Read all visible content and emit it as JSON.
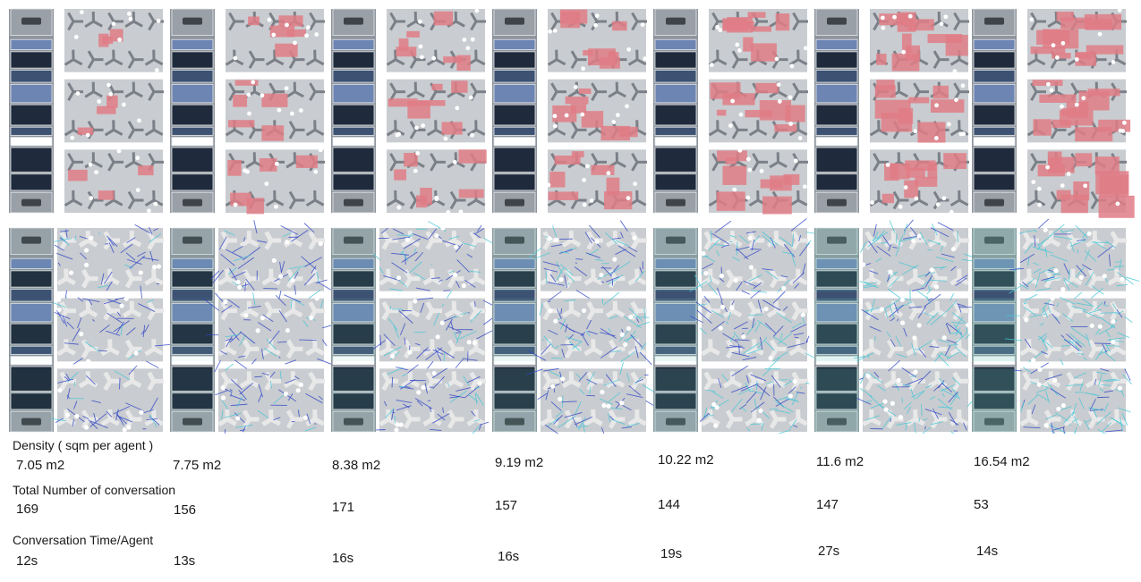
{
  "row_labels": {
    "density": "Density ( sqm per agent )",
    "conversations": "Total Number of conversation",
    "time": "Conversation Time/Agent"
  },
  "columns": [
    {
      "density": "7.05 m2",
      "conversations": "169",
      "time": "12s"
    },
    {
      "density": "7.75 m2",
      "conversations": "156",
      "time": "13s"
    },
    {
      "density": "8.38 m2",
      "conversations": "171",
      "time": "16s"
    },
    {
      "density": "9.19 m2",
      "conversations": "157",
      "time": "16s"
    },
    {
      "density": "10.22 m2",
      "conversations": "144",
      "time": "19s"
    },
    {
      "density": "11.6 m2",
      "conversations": "147",
      "time": "27s"
    },
    {
      "density": "16.54 m2",
      "conversations": "53",
      "time": "14s"
    }
  ],
  "colors": {
    "floor": "#c9ccd0",
    "desk": "#7b8088",
    "dark_block": "#1f2b3c",
    "mid_block": "#3d5273",
    "highlight": "#6d85b3",
    "conversation_zone": "#e07d86",
    "path_blue": "#2f45c8",
    "path_cyan": "#46c8d8",
    "path_teal": "#6fc8b8"
  },
  "panel_intensity": [
    0.15,
    0.3,
    0.45,
    0.55,
    0.65,
    0.8,
    0.95
  ]
}
